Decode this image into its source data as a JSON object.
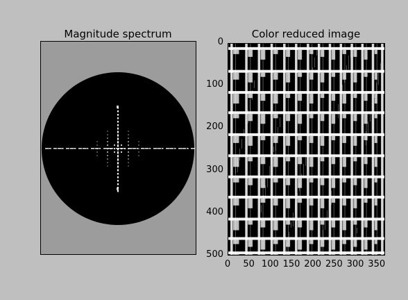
{
  "chart_data": [
    {
      "type": "heatmap",
      "title": "Magnitude spectrum",
      "xlabel": "",
      "ylabel": "",
      "axis_ticks_visible": false,
      "background_color": "#9c9c9c",
      "mask_shape": "circle",
      "mask_color": "#000000",
      "highlight_color": "#ffffff"
    },
    {
      "type": "heatmap",
      "title": "Color reduced image",
      "xlabel": "",
      "ylabel": "",
      "xlim": [
        0,
        370
      ],
      "ylim": [
        500,
        0
      ],
      "xticks": [
        0,
        50,
        100,
        150,
        200,
        250,
        300,
        350
      ],
      "yticks": [
        0,
        100,
        200,
        300,
        400,
        500
      ],
      "columns_x": [
        5,
        40,
        70,
        100,
        130,
        158,
        186,
        212,
        238,
        264,
        290,
        315,
        340,
        362
      ],
      "floors_y": [
        8,
        62,
        112,
        160,
        212,
        262,
        312,
        360,
        412,
        458,
        492
      ],
      "colors": [
        "#000000",
        "#ffffff"
      ]
    }
  ]
}
